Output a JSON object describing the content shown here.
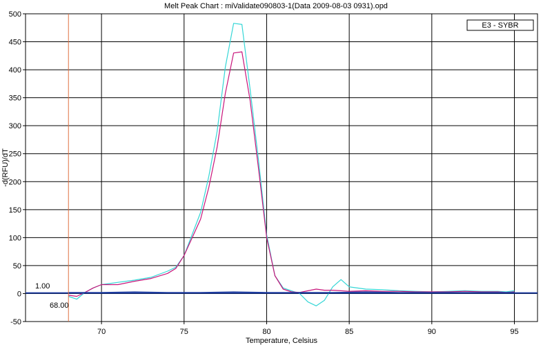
{
  "chart_data": {
    "type": "line",
    "title": "Melt Peak Chart : miValidate090803-1(Data 2009-08-03 0931).opd",
    "xlabel": "Temperature, Celsius",
    "ylabel": "-d(RFU)/dT",
    "xlim": [
      65.4,
      96.4
    ],
    "ylim": [
      -50,
      500
    ],
    "x_ticks": [
      70,
      75,
      80,
      85,
      90,
      95
    ],
    "y_ticks": [
      -50,
      0,
      50,
      100,
      150,
      200,
      250,
      300,
      350,
      400,
      450,
      500
    ],
    "grid": true,
    "legend": {
      "label": "E3 - SYBR",
      "position": "top-right"
    },
    "threshold": {
      "value": 1,
      "label": "1.00",
      "color": "#1e3ca0"
    },
    "marker": {
      "x": 68,
      "label": "68.00",
      "color": "#e07040"
    },
    "series": [
      {
        "color": "#33d6d6",
        "x": [
          68,
          68.5,
          69,
          69.5,
          70,
          71,
          72,
          73,
          74,
          74.5,
          75,
          76,
          76.5,
          77,
          77.5,
          78,
          78.5,
          79,
          79.5,
          80,
          80.5,
          81,
          81.5,
          82,
          82.5,
          83,
          83.5,
          84,
          84.5,
          85,
          86,
          87,
          88,
          89,
          90,
          91,
          92,
          93,
          94,
          94.5,
          95
        ],
        "y": [
          -5,
          -10,
          2,
          10,
          16,
          20,
          24,
          29,
          40,
          47,
          68,
          145,
          210,
          290,
          405,
          483,
          481,
          365,
          240,
          105,
          32,
          10,
          5,
          0,
          -15,
          -22,
          -12,
          12,
          25,
          12,
          8,
          7,
          5,
          4,
          3,
          4,
          5,
          4,
          4,
          3,
          5
        ]
      },
      {
        "color": "#c8147a",
        "x": [
          68,
          68.5,
          69,
          69.5,
          70,
          71,
          72,
          73,
          74,
          74.5,
          75,
          76,
          76.5,
          77,
          77.5,
          78,
          78.5,
          79,
          79.5,
          80,
          80.5,
          81,
          81.5,
          82,
          82.5,
          83,
          83.5,
          84,
          84.5,
          85,
          86,
          87,
          88,
          89,
          90,
          91,
          92,
          93,
          94,
          94.5,
          95
        ],
        "y": [
          -3,
          -5,
          2,
          10,
          16,
          16,
          22,
          27,
          36,
          45,
          68,
          133,
          190,
          262,
          358,
          430,
          432,
          345,
          225,
          100,
          32,
          8,
          3,
          2,
          5,
          8,
          6,
          6,
          5,
          4,
          5,
          4,
          4,
          3,
          3,
          3,
          4,
          3,
          3,
          2,
          3
        ]
      },
      {
        "color": "#1e3ca0",
        "x": [
          68,
          70,
          72,
          74,
          76,
          78,
          80,
          82,
          84,
          86,
          88,
          90,
          92,
          94,
          95
        ],
        "y": [
          2,
          2,
          3,
          2,
          2,
          3,
          2,
          2,
          2,
          3,
          2,
          2,
          2,
          2,
          2
        ]
      }
    ]
  }
}
